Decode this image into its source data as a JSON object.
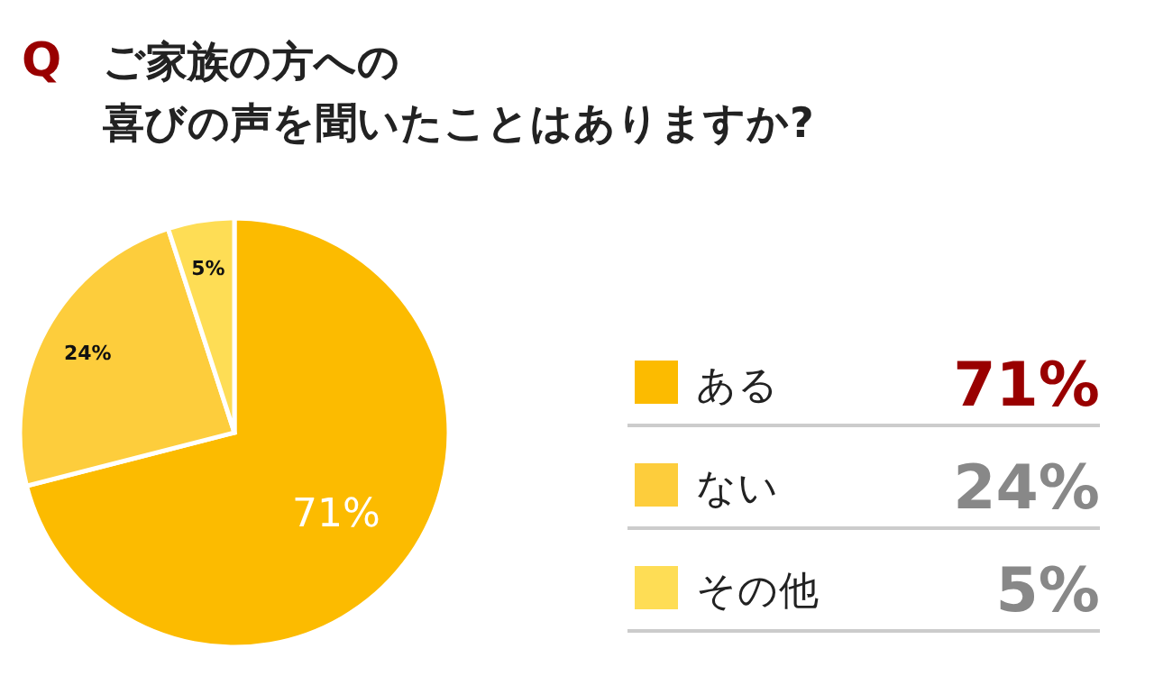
{
  "chart_data": {
    "type": "pie",
    "title": "ご家族の方への",
    "subtitle": "喜びの声を聞いたことはありますか?",
    "annotations": [
      "Q"
    ],
    "categories": [
      "ある",
      "ない",
      "その他"
    ],
    "values": [
      71,
      24,
      5
    ],
    "value_labels": [
      "71%",
      "24%",
      "5%"
    ],
    "colors": [
      "#fcbb00",
      "#fdcd3c",
      "#fedd55"
    ],
    "legend": "right"
  }
}
